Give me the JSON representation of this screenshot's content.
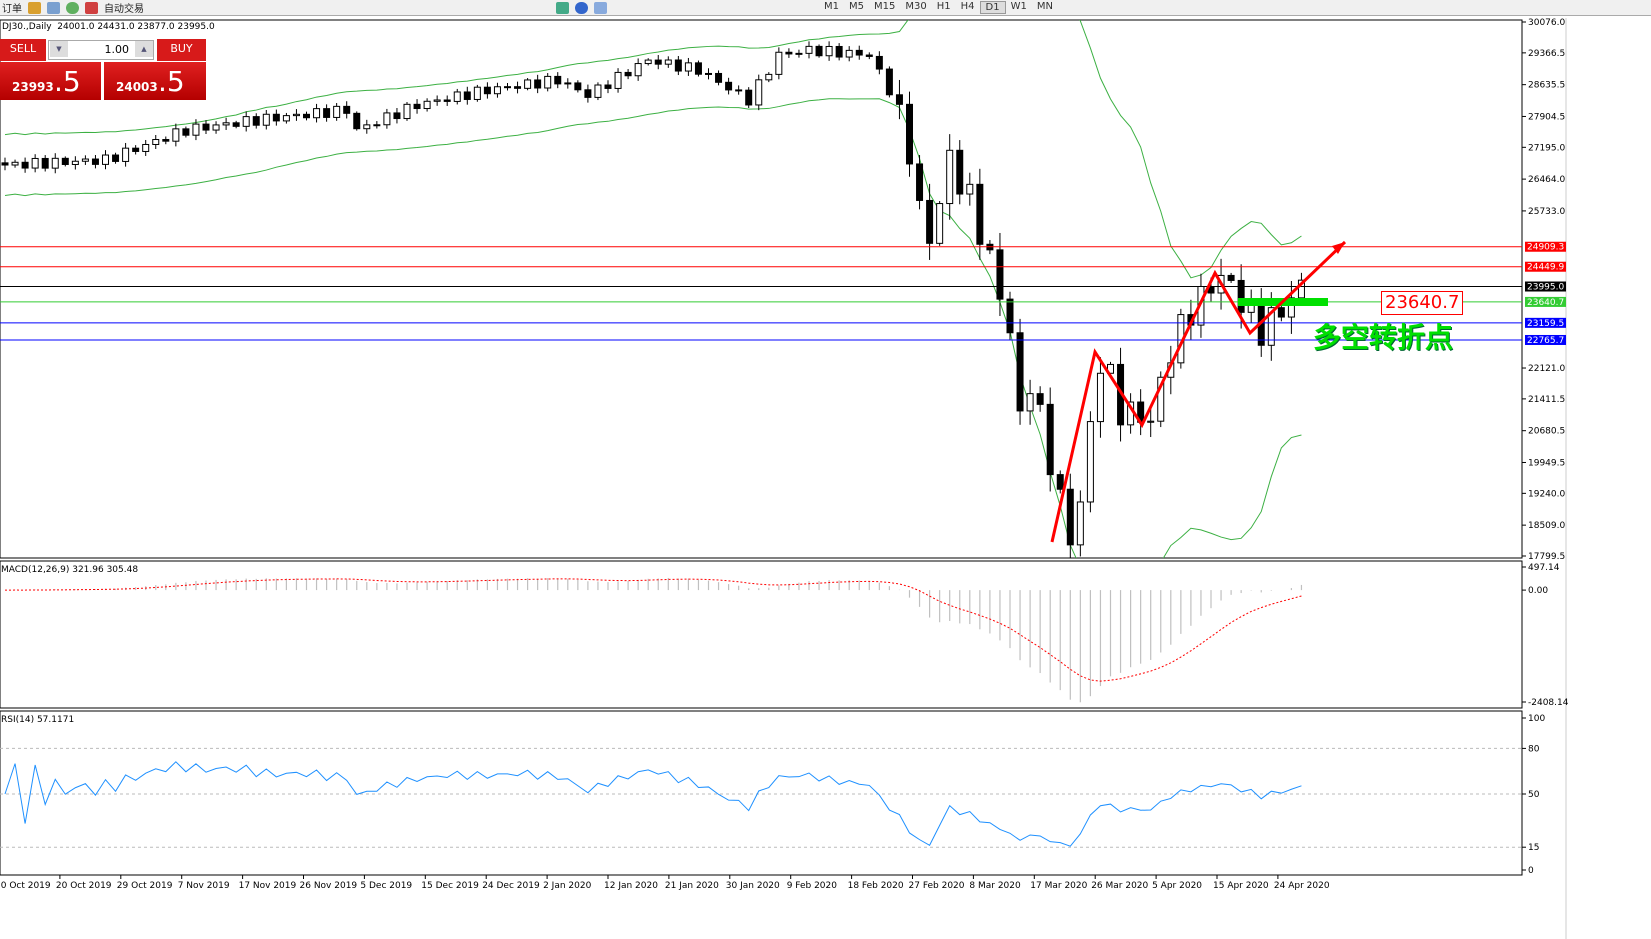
{
  "toolbar": {
    "new_order": "订单",
    "auto_trading": "自动交易",
    "timeframes": [
      "M1",
      "M5",
      "M15",
      "M30",
      "H1",
      "H4",
      "D1",
      "W1",
      "MN"
    ],
    "active_timeframe": "D1"
  },
  "chart_header": {
    "text": "DJ30.,Daily  24001.0 24431.0 23877.0 23995.0"
  },
  "trade_panel": {
    "sell_label": "SELL",
    "buy_label": "BUY",
    "lot": "1.00",
    "sell_big": "23993",
    "sell_small": ".5",
    "buy_big": "24003",
    "buy_small": ".5",
    "color": "#d71a1a"
  },
  "annotations": {
    "price_box": "23640.7",
    "text": "多空转折点",
    "arrow_color": "#ff0000",
    "zone_color": "#00e000"
  },
  "chart_data": [
    {
      "type": "candlestick",
      "title": "DJ30.,Daily",
      "price_axis": [
        "30076.0",
        "29366.5",
        "28635.5",
        "27904.5",
        "27195.0",
        "26464.0",
        "25733.0",
        "22121.0",
        "21411.5",
        "20680.5",
        "19949.5",
        "19240.0",
        "18509.0",
        "17799.5"
      ],
      "ylim": [
        17799.5,
        30076.0
      ],
      "close_keypoints": [
        [
          0,
          26788
        ],
        [
          10,
          26903
        ],
        [
          18,
          27593
        ],
        [
          25,
          27823
        ],
        [
          34,
          28053
        ],
        [
          35,
          27593
        ],
        [
          41,
          28168
        ],
        [
          48,
          28513
        ],
        [
          55,
          28743
        ],
        [
          58,
          28398
        ],
        [
          64,
          29202
        ],
        [
          69,
          28973
        ],
        [
          74,
          28283
        ],
        [
          77,
          29317
        ],
        [
          80,
          29432
        ],
        [
          86,
          29317
        ],
        [
          88,
          28513
        ],
        [
          90,
          27133
        ],
        [
          91,
          25754
        ],
        [
          92,
          25064
        ],
        [
          94,
          26903
        ],
        [
          96,
          25984
        ],
        [
          98,
          24604
        ],
        [
          100,
          22995
        ],
        [
          101,
          20926
        ],
        [
          102,
          21846
        ],
        [
          104,
          20006
        ],
        [
          105,
          19087
        ],
        [
          106,
          18167
        ],
        [
          107,
          19087
        ],
        [
          109,
          22305
        ],
        [
          110,
          21846
        ],
        [
          111,
          21156
        ],
        [
          114,
          20926
        ],
        [
          116,
          22535
        ],
        [
          118,
          23455
        ],
        [
          121,
          24259
        ],
        [
          123,
          23685
        ],
        [
          125,
          22995
        ],
        [
          127,
          23455
        ],
        [
          129,
          23995
        ]
      ],
      "indicator": "Bollinger Bands",
      "hlines": [
        {
          "value": "24909.3",
          "color": "#ff0000"
        },
        {
          "value": "24449.9",
          "color": "#ff0000"
        },
        {
          "value": "23995.0",
          "color": "#000000"
        },
        {
          "value": "23640.7",
          "color": "#33cc33"
        },
        {
          "value": "23159.5",
          "color": "#0000ff"
        },
        {
          "value": "22765.7",
          "color": "#0000ff"
        }
      ],
      "x_tick_labels": [
        "10 Oct 2019",
        "20 Oct 2019",
        "29 Oct 2019",
        "7 Nov 2019",
        "17 Nov 2019",
        "26 Nov 2019",
        "5 Dec 2019",
        "15 Dec 2019",
        "24 Dec 2019",
        "2 Jan 2020",
        "12 Jan 2020",
        "21 Jan 2020",
        "30 Jan 2020",
        "9 Feb 2020",
        "18 Feb 2020",
        "27 Feb 2020",
        "8 Mar 2020",
        "17 Mar 2020",
        "26 Mar 2020",
        "5 Apr 2020",
        "15 Apr 2020",
        "24 Apr 2020"
      ]
    },
    {
      "type": "bar",
      "title": "MACD(12,26,9) 321.96 305.48",
      "y_ticks": [
        "497.14",
        "0.00",
        "-2408.14"
      ],
      "ylim": [
        -2408.14,
        497.14
      ],
      "signal_color": "#ff0000",
      "hist_color": "#c0c0c0"
    },
    {
      "type": "line",
      "title": "RSI(14) 57.1171",
      "y_ticks": [
        "100",
        "80",
        "50",
        "15",
        "0"
      ],
      "ylim": [
        0,
        100
      ],
      "levels": [
        80,
        50,
        15
      ],
      "color": "#1e90ff"
    }
  ]
}
